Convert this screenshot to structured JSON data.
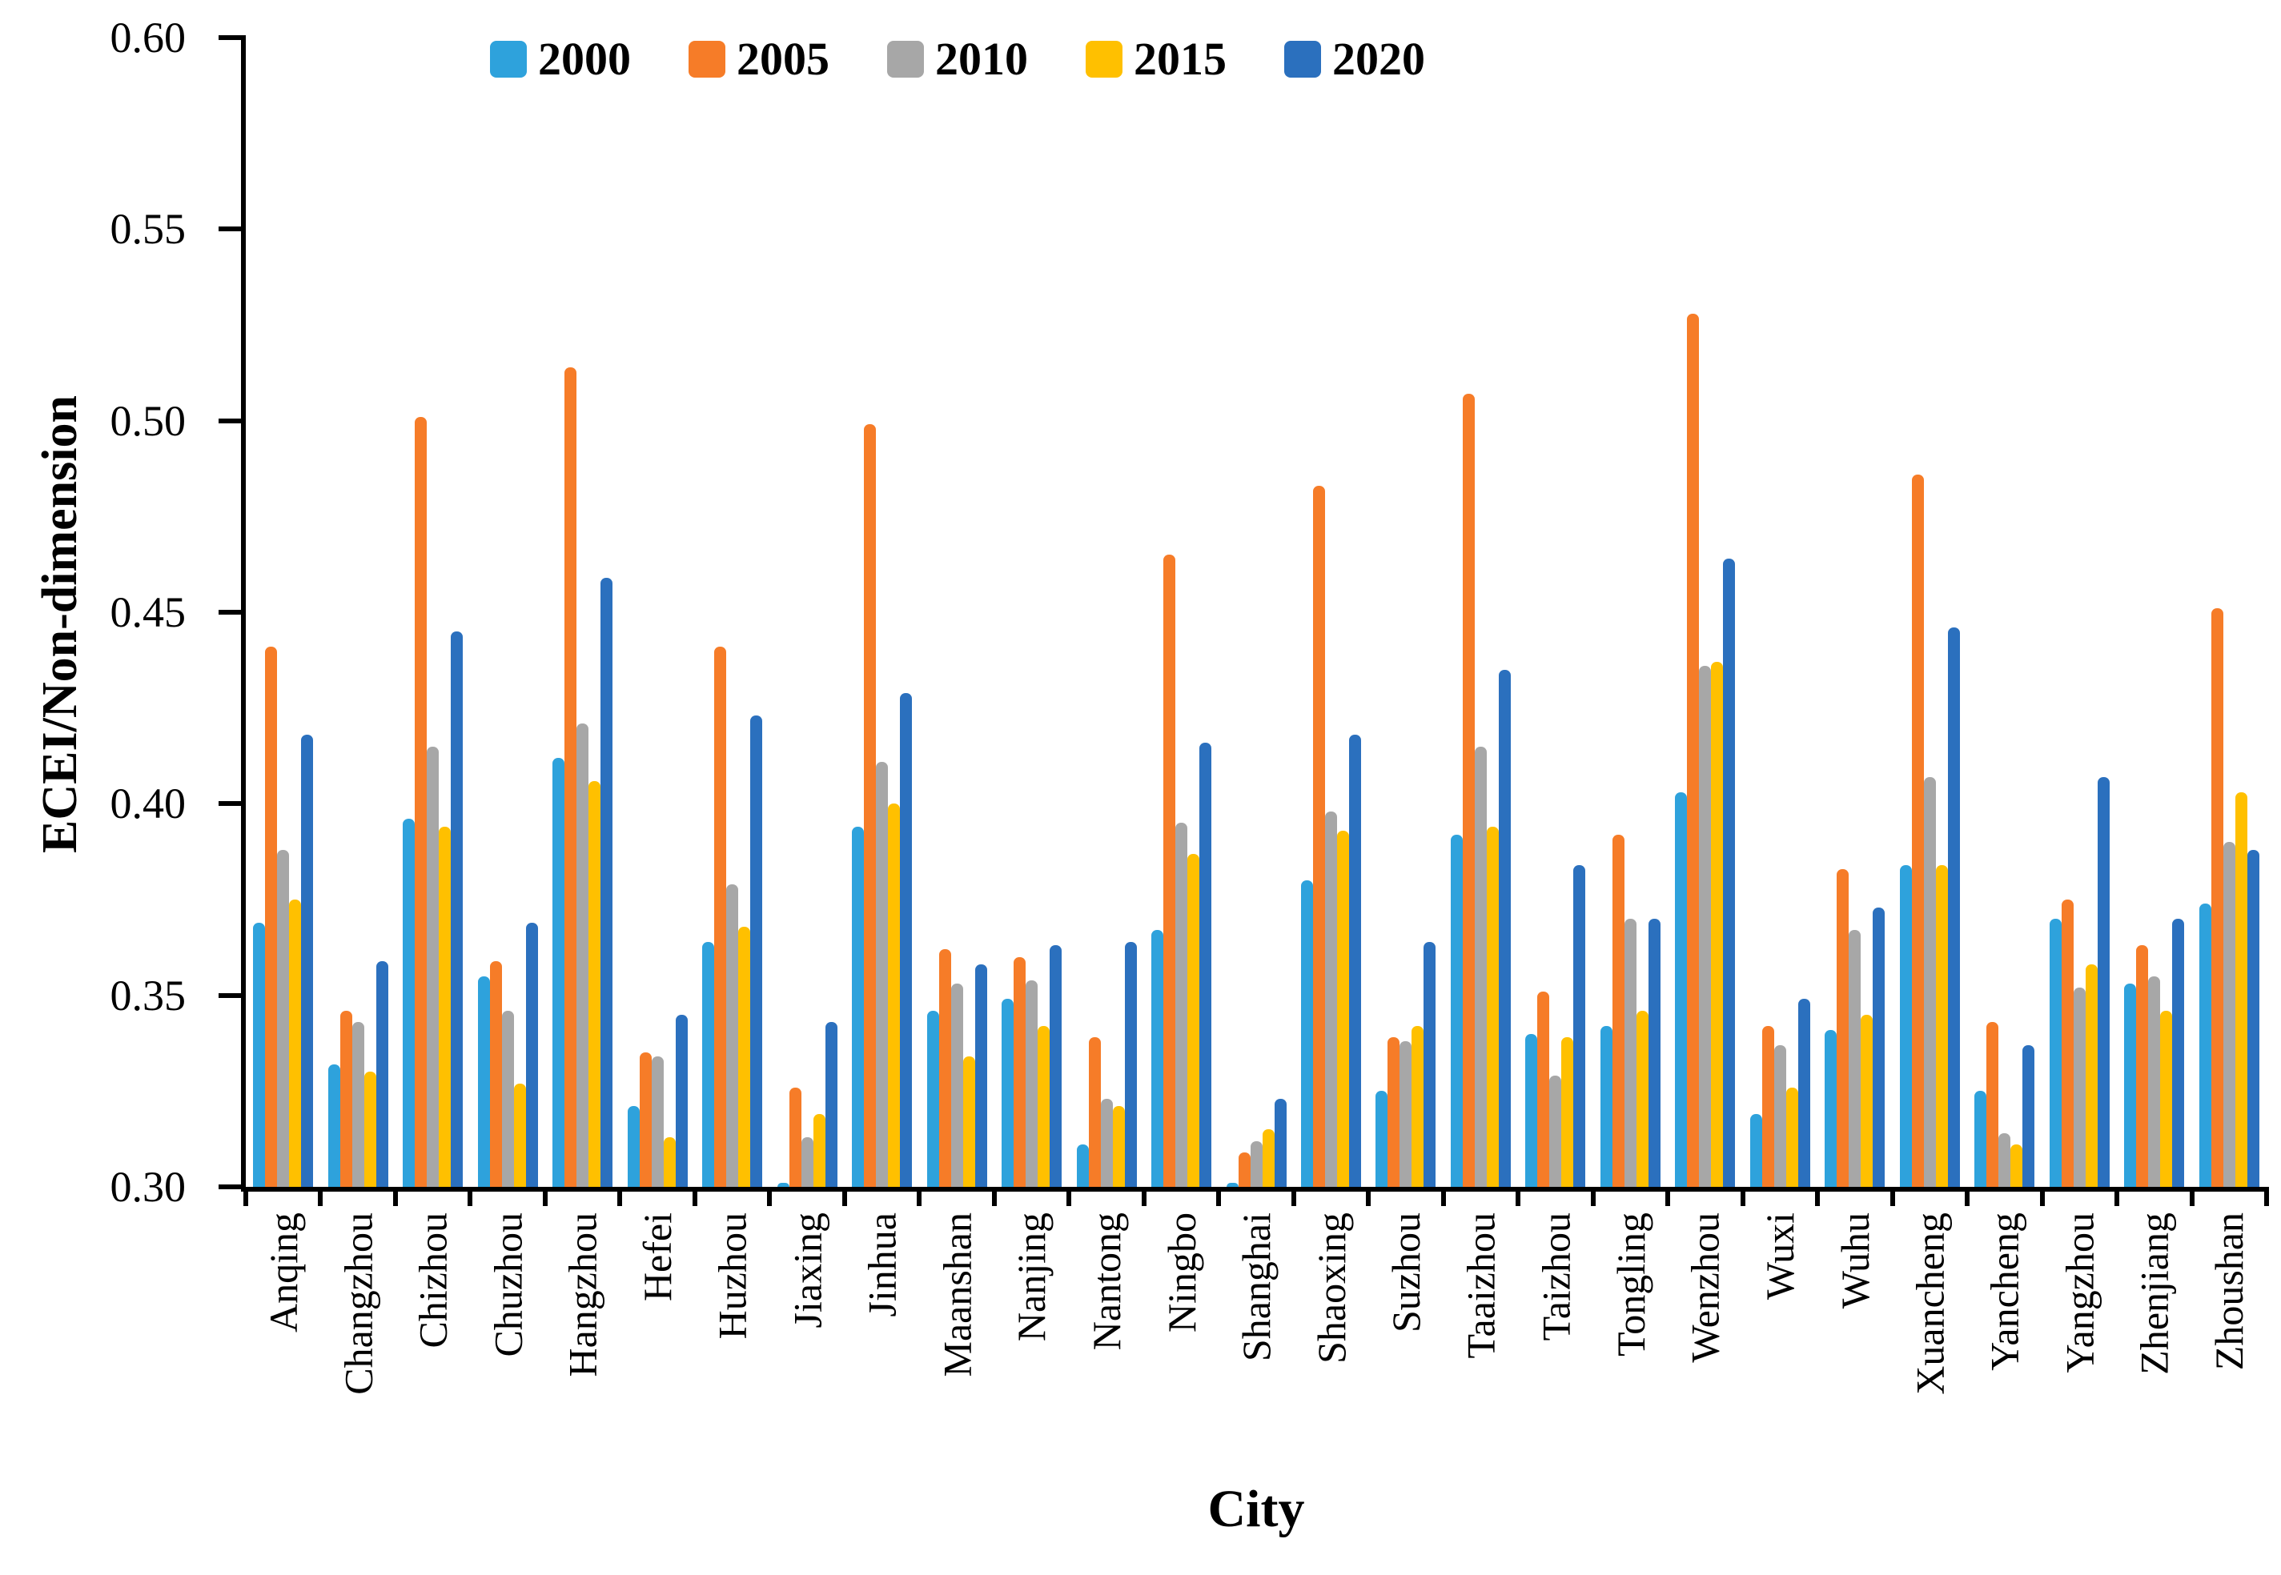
{
  "chart_data": {
    "type": "bar",
    "title": "",
    "xlabel": "City",
    "ylabel": "ECEI/Non-dimension",
    "ylim": [
      0.3,
      0.6
    ],
    "ytick_step": 0.05,
    "ytick_labels": [
      "0.60",
      "0.55",
      "0.50",
      "0.45",
      "0.40",
      "0.35",
      "0.30"
    ],
    "grid": false,
    "legend_position": "top",
    "categories": [
      "Anqing",
      "Changzhou",
      "Chizhou",
      "Chuzhou",
      "Hangzhou",
      "Hefei",
      "Huzhou",
      "Jiaxing",
      "Jinhua",
      "Maanshan",
      "Nanjing",
      "Nantong",
      "Ningbo",
      "Shanghai",
      "Shaoxing",
      "Suzhou",
      "Taaizhou",
      "Taizhou",
      "Tongling",
      "Wenzhou",
      "Wuxi",
      "Wuhu",
      "Xuancheng",
      "Yancheng",
      "Yangzhou",
      "Zhenjiang",
      "Zhoushan"
    ],
    "series": [
      {
        "name": "2000",
        "color": "#2EA2DC",
        "values": [
          0.369,
          0.332,
          0.396,
          0.355,
          0.412,
          0.321,
          0.364,
          0.301,
          0.394,
          0.346,
          0.349,
          0.311,
          0.367,
          0.301,
          0.38,
          0.325,
          0.392,
          0.34,
          0.342,
          0.403,
          0.319,
          0.341,
          0.384,
          0.325,
          0.37,
          0.353,
          0.374
        ]
      },
      {
        "name": "2005",
        "color": "#F67C28",
        "values": [
          0.441,
          0.346,
          0.501,
          0.359,
          0.514,
          0.335,
          0.441,
          0.326,
          0.499,
          0.362,
          0.36,
          0.339,
          0.465,
          0.309,
          0.483,
          0.339,
          0.507,
          0.351,
          0.392,
          0.528,
          0.342,
          0.383,
          0.486,
          0.343,
          0.375,
          0.363,
          0.451
        ]
      },
      {
        "name": "2010",
        "color": "#A7A7A7",
        "values": [
          0.388,
          0.343,
          0.415,
          0.346,
          0.421,
          0.334,
          0.379,
          0.313,
          0.411,
          0.353,
          0.354,
          0.323,
          0.395,
          0.312,
          0.398,
          0.338,
          0.415,
          0.329,
          0.37,
          0.436,
          0.337,
          0.367,
          0.407,
          0.314,
          0.352,
          0.355,
          0.39
        ]
      },
      {
        "name": "2015",
        "color": "#FFC000",
        "values": [
          0.375,
          0.33,
          0.394,
          0.327,
          0.406,
          0.313,
          0.368,
          0.319,
          0.4,
          0.334,
          0.342,
          0.321,
          0.387,
          0.315,
          0.393,
          0.342,
          0.394,
          0.339,
          0.346,
          0.437,
          0.326,
          0.345,
          0.384,
          0.311,
          0.358,
          0.346,
          0.403
        ]
      },
      {
        "name": "2020",
        "color": "#2B70BE",
        "values": [
          0.418,
          0.359,
          0.445,
          0.369,
          0.459,
          0.345,
          0.423,
          0.343,
          0.429,
          0.358,
          0.363,
          0.364,
          0.416,
          0.323,
          0.418,
          0.364,
          0.435,
          0.384,
          0.37,
          0.464,
          0.349,
          0.373,
          0.446,
          0.337,
          0.407,
          0.37,
          0.388
        ]
      }
    ]
  }
}
